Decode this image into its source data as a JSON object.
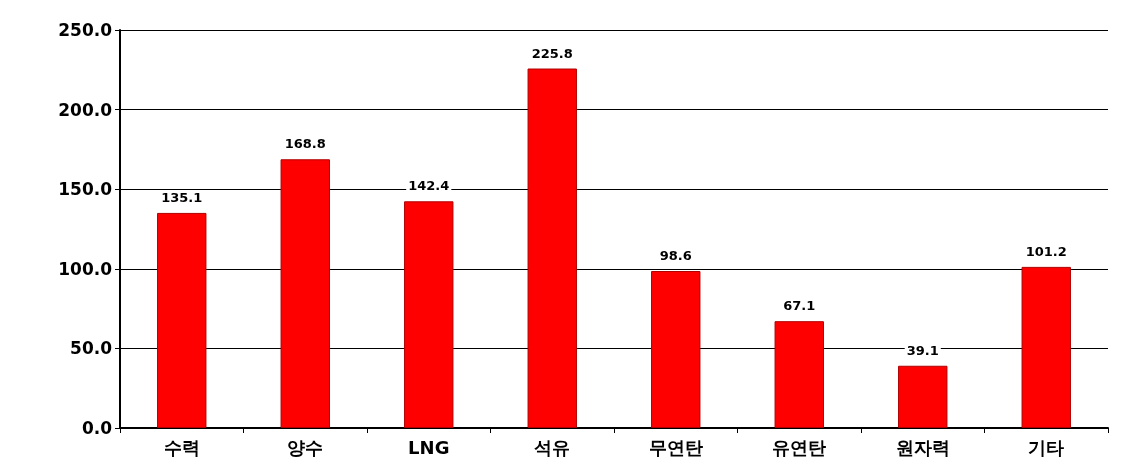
{
  "chart_data": {
    "type": "bar",
    "categories": [
      "수력",
      "양수",
      "LNG",
      "석유",
      "무연탄",
      "유연탄",
      "원자력",
      "기타"
    ],
    "values": [
      135.1,
      168.8,
      142.4,
      225.8,
      98.6,
      67.1,
      39.1,
      101.2
    ],
    "color": "#ff0000",
    "ylim": [
      0,
      250
    ],
    "yticks": [
      {
        "value": 0,
        "label": "0.0"
      },
      {
        "value": 50,
        "label": "50.0"
      },
      {
        "value": 100,
        "label": "100.0"
      },
      {
        "value": 150,
        "label": "150.0"
      },
      {
        "value": 200,
        "label": "200.0"
      },
      {
        "value": 250,
        "label": "250.0"
      }
    ],
    "grid": "y",
    "data_labels": true
  }
}
